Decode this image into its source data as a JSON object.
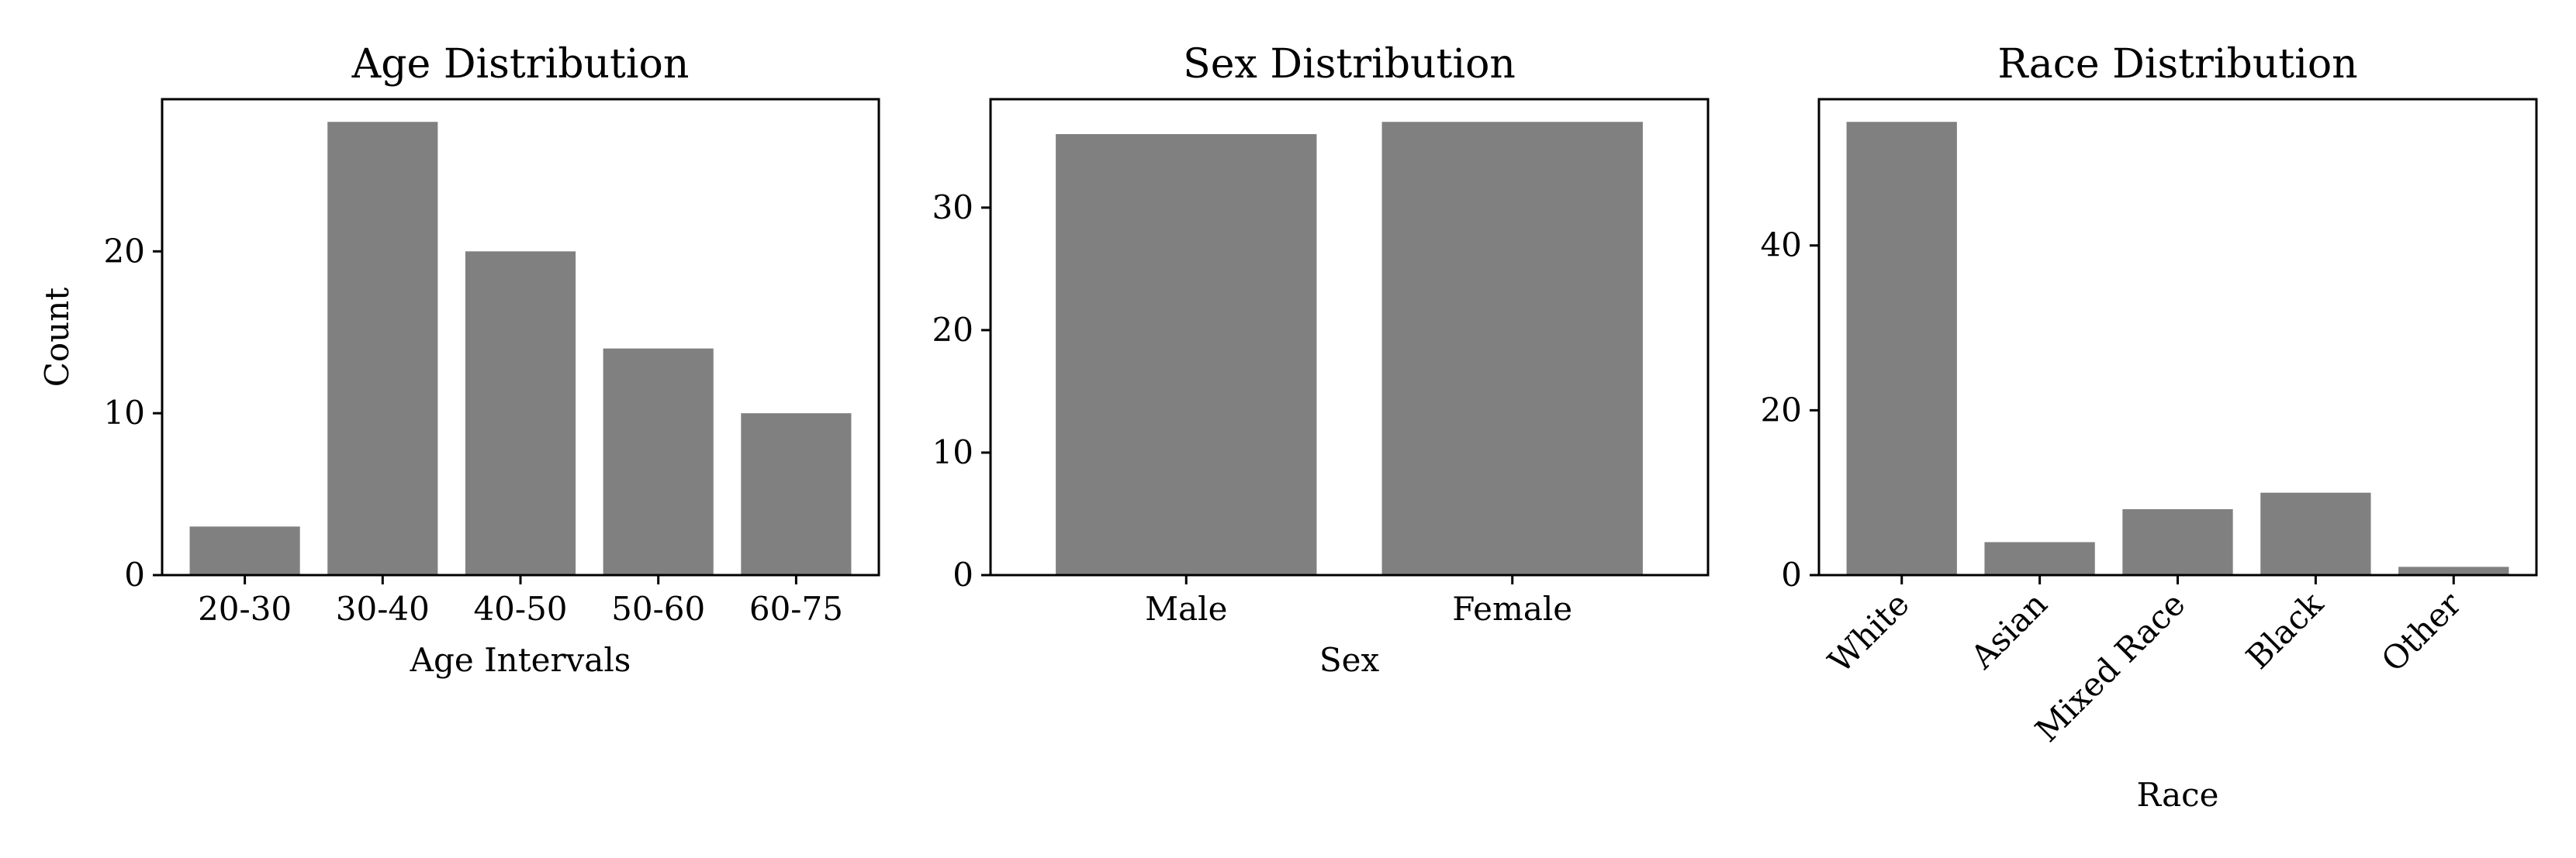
{
  "colors": {
    "bar": "#808080",
    "axis": "#000000",
    "background": "#ffffff"
  },
  "chart_data": [
    {
      "type": "bar",
      "title": "Age Distribution",
      "xlabel": "Age Intervals",
      "ylabel": "Count",
      "categories": [
        "20-30",
        "30-40",
        "40-50",
        "50-60",
        "60-75"
      ],
      "values": [
        3,
        28,
        20,
        14,
        10
      ],
      "ylim": [
        0,
        29.4
      ],
      "yticks": [
        0,
        10,
        20
      ],
      "xtick_rotation": 0,
      "grid": false,
      "legend": "none"
    },
    {
      "type": "bar",
      "title": "Sex Distribution",
      "xlabel": "Sex",
      "ylabel": "",
      "categories": [
        "Male",
        "Female"
      ],
      "values": [
        36,
        37
      ],
      "ylim": [
        0,
        38.85
      ],
      "yticks": [
        0,
        10,
        20,
        30
      ],
      "xtick_rotation": 0,
      "grid": false,
      "legend": "none"
    },
    {
      "type": "bar",
      "title": "Race Distribution",
      "xlabel": "Race",
      "ylabel": "",
      "categories": [
        "White",
        "Asian",
        "Mixed Race",
        "Black",
        "Other"
      ],
      "values": [
        55,
        4,
        8,
        10,
        1
      ],
      "ylim": [
        0,
        57.75
      ],
      "yticks": [
        0,
        20,
        40
      ],
      "xtick_rotation": -45,
      "grid": false,
      "legend": "none"
    }
  ]
}
